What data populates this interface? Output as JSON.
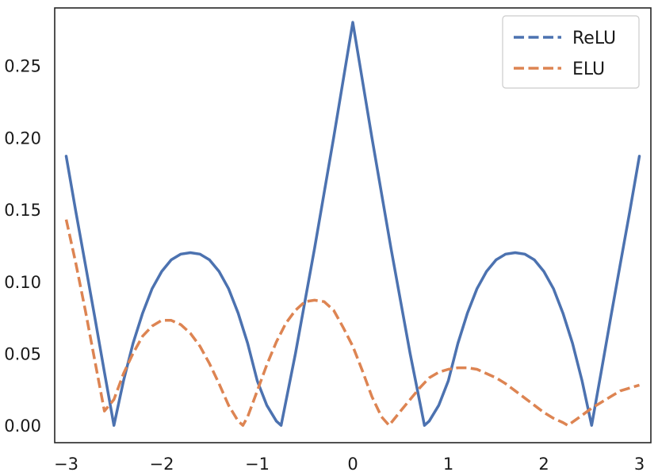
{
  "chart_data": {
    "type": "line",
    "xlim": [
      -3.12,
      3.12
    ],
    "ylim": [
      -0.012,
      0.29
    ],
    "xticks": [
      -3,
      -2,
      -1,
      0,
      1,
      2,
      3
    ],
    "yticks": [
      0.0,
      0.05,
      0.1,
      0.15,
      0.2,
      0.25
    ],
    "xtick_labels": [
      "−3",
      "−2",
      "−1",
      "0",
      "1",
      "2",
      "3"
    ],
    "ytick_labels": [
      "0.00",
      "0.05",
      "0.10",
      "0.15",
      "0.20",
      "0.25"
    ],
    "grid": false,
    "legend_position": "top-right",
    "series": [
      {
        "name": "ReLU",
        "color": "#4c72b0",
        "dash": "solid",
        "x": [
          -3.0,
          -2.9,
          -2.8,
          -2.7,
          -2.6,
          -2.5,
          -2.4,
          -2.3,
          -2.2,
          -2.1,
          -2.0,
          -1.9,
          -1.8,
          -1.7,
          -1.6,
          -1.5,
          -1.4,
          -1.3,
          -1.2,
          -1.1,
          -1.0,
          -0.9,
          -0.8,
          -0.75,
          -0.6,
          -0.4,
          -0.2,
          0.0,
          0.2,
          0.4,
          0.6,
          0.75,
          0.8,
          0.9,
          1.0,
          1.1,
          1.2,
          1.3,
          1.4,
          1.5,
          1.6,
          1.7,
          1.8,
          1.9,
          2.0,
          2.1,
          2.2,
          2.3,
          2.4,
          2.5,
          2.6,
          2.7,
          2.8,
          2.9,
          3.0
        ],
        "y": [
          0.187,
          0.149,
          0.112,
          0.075,
          0.037,
          0.0,
          0.031,
          0.057,
          0.078,
          0.095,
          0.107,
          0.115,
          0.119,
          0.12,
          0.119,
          0.115,
          0.107,
          0.095,
          0.078,
          0.057,
          0.031,
          0.014,
          0.003,
          0.0,
          0.05,
          0.123,
          0.2,
          0.28,
          0.2,
          0.123,
          0.05,
          0.0,
          0.003,
          0.014,
          0.031,
          0.057,
          0.078,
          0.095,
          0.107,
          0.115,
          0.119,
          0.12,
          0.119,
          0.115,
          0.107,
          0.095,
          0.078,
          0.057,
          0.031,
          0.0,
          0.037,
          0.075,
          0.112,
          0.149,
          0.187
        ]
      },
      {
        "name": "ELU",
        "color": "#dd8452",
        "dash": "dashed",
        "x": [
          -3.0,
          -2.9,
          -2.8,
          -2.7,
          -2.6,
          -2.5,
          -2.4,
          -2.3,
          -2.2,
          -2.1,
          -2.0,
          -1.9,
          -1.8,
          -1.7,
          -1.6,
          -1.5,
          -1.4,
          -1.3,
          -1.2,
          -1.15,
          -1.1,
          -1.0,
          -0.9,
          -0.8,
          -0.7,
          -0.6,
          -0.5,
          -0.4,
          -0.3,
          -0.2,
          -0.1,
          0.0,
          0.1,
          0.2,
          0.3,
          0.38,
          0.5,
          0.6,
          0.7,
          0.8,
          0.9,
          1.0,
          1.1,
          1.2,
          1.3,
          1.4,
          1.5,
          1.6,
          1.7,
          1.8,
          1.9,
          2.0,
          2.1,
          2.2,
          2.25,
          2.4,
          2.5,
          2.6,
          2.7,
          2.8,
          2.9,
          3.0
        ],
        "y": [
          0.143,
          0.113,
          0.08,
          0.045,
          0.01,
          0.018,
          0.036,
          0.05,
          0.062,
          0.069,
          0.073,
          0.073,
          0.07,
          0.064,
          0.055,
          0.043,
          0.029,
          0.014,
          0.003,
          0.0,
          0.006,
          0.024,
          0.042,
          0.058,
          0.071,
          0.08,
          0.086,
          0.087,
          0.086,
          0.08,
          0.068,
          0.055,
          0.038,
          0.02,
          0.006,
          0.0,
          0.01,
          0.018,
          0.026,
          0.033,
          0.037,
          0.039,
          0.04,
          0.04,
          0.039,
          0.036,
          0.033,
          0.029,
          0.024,
          0.019,
          0.014,
          0.009,
          0.005,
          0.002,
          0.0,
          0.007,
          0.012,
          0.016,
          0.02,
          0.024,
          0.026,
          0.028
        ]
      }
    ]
  }
}
